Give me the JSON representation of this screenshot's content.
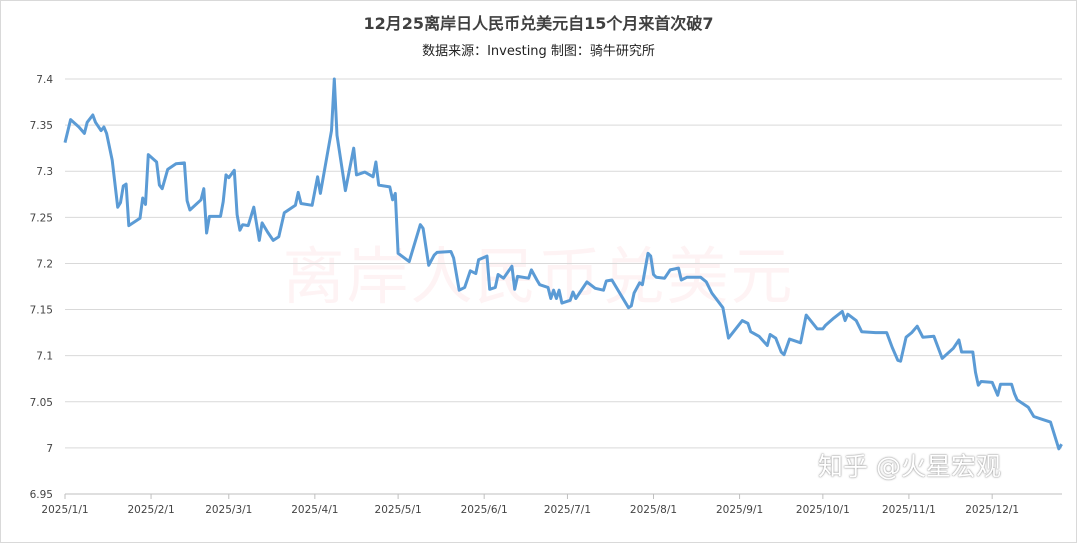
{
  "chart_data": {
    "type": "line",
    "title": "12月25离岸日人民币兑美元自15个月来首次破7",
    "subtitle": "数据来源：Investing   制图：骑牛研究所",
    "xlabel": "",
    "ylabel": "",
    "ylim": [
      6.95,
      7.4
    ],
    "yticks": [
      "6.95",
      "7",
      "7.05",
      "7.1",
      "7.15",
      "7.2",
      "7.25",
      "7.3",
      "7.35",
      "7.4"
    ],
    "xticks": [
      "2025/1/1",
      "2025/2/1",
      "2025/3/1",
      "2025/4/1",
      "2025/5/1",
      "2025/6/1",
      "2025/7/1",
      "2025/8/1",
      "2025/9/1",
      "2025/10/1",
      "2025/11/1",
      "2025/12/1"
    ],
    "grid": true,
    "line_color": "#5b9bd5",
    "points": [
      [
        "2025-01-01",
        7.331
      ],
      [
        "2025-01-03",
        7.356
      ],
      [
        "2025-01-06",
        7.348
      ],
      [
        "2025-01-08",
        7.341
      ],
      [
        "2025-01-09",
        7.353
      ],
      [
        "2025-01-11",
        7.361
      ],
      [
        "2025-01-12",
        7.353
      ],
      [
        "2025-01-14",
        7.344
      ],
      [
        "2025-01-15",
        7.348
      ],
      [
        "2025-01-16",
        7.341
      ],
      [
        "2025-01-18",
        7.312
      ],
      [
        "2025-01-20",
        7.261
      ],
      [
        "2025-01-21",
        7.266
      ],
      [
        "2025-01-22",
        7.284
      ],
      [
        "2025-01-23",
        7.286
      ],
      [
        "2025-01-24",
        7.241
      ],
      [
        "2025-01-28",
        7.249
      ],
      [
        "2025-01-29",
        7.271
      ],
      [
        "2025-01-30",
        7.264
      ],
      [
        "2025-01-31",
        7.318
      ],
      [
        "2025-02-03",
        7.31
      ],
      [
        "2025-02-04",
        7.285
      ],
      [
        "2025-02-05",
        7.281
      ],
      [
        "2025-02-07",
        7.302
      ],
      [
        "2025-02-10",
        7.308
      ],
      [
        "2025-02-13",
        7.309
      ],
      [
        "2025-02-14",
        7.268
      ],
      [
        "2025-02-15",
        7.258
      ],
      [
        "2025-02-19",
        7.269
      ],
      [
        "2025-02-20",
        7.281
      ],
      [
        "2025-02-21",
        7.233
      ],
      [
        "2025-02-22",
        7.251
      ],
      [
        "2025-02-26",
        7.251
      ],
      [
        "2025-02-27",
        7.267
      ],
      [
        "2025-02-28",
        7.296
      ],
      [
        "2025-03-01",
        7.293
      ],
      [
        "2025-03-03",
        7.301
      ],
      [
        "2025-03-04",
        7.253
      ],
      [
        "2025-03-05",
        7.236
      ],
      [
        "2025-03-06",
        7.242
      ],
      [
        "2025-03-08",
        7.241
      ],
      [
        "2025-03-10",
        7.261
      ],
      [
        "2025-03-12",
        7.225
      ],
      [
        "2025-03-13",
        7.244
      ],
      [
        "2025-03-15",
        7.234
      ],
      [
        "2025-03-17",
        7.225
      ],
      [
        "2025-03-19",
        7.229
      ],
      [
        "2025-03-21",
        7.255
      ],
      [
        "2025-03-25",
        7.263
      ],
      [
        "2025-03-26",
        7.277
      ],
      [
        "2025-03-27",
        7.265
      ],
      [
        "2025-03-31",
        7.263
      ],
      [
        "2025-04-02",
        7.294
      ],
      [
        "2025-04-03",
        7.276
      ],
      [
        "2025-04-07",
        7.344
      ],
      [
        "2025-04-08",
        7.4
      ],
      [
        "2025-04-09",
        7.339
      ],
      [
        "2025-04-12",
        7.279
      ],
      [
        "2025-04-15",
        7.325
      ],
      [
        "2025-04-16",
        7.296
      ],
      [
        "2025-04-19",
        7.299
      ],
      [
        "2025-04-22",
        7.294
      ],
      [
        "2025-04-23",
        7.31
      ],
      [
        "2025-04-24",
        7.285
      ],
      [
        "2025-04-28",
        7.283
      ],
      [
        "2025-04-29",
        7.269
      ],
      [
        "2025-04-30",
        7.276
      ],
      [
        "2025-05-01",
        7.211
      ],
      [
        "2025-05-05",
        7.202
      ],
      [
        "2025-05-09",
        7.242
      ],
      [
        "2025-05-10",
        7.238
      ],
      [
        "2025-05-12",
        7.198
      ],
      [
        "2025-05-14",
        7.209
      ],
      [
        "2025-05-15",
        7.212
      ],
      [
        "2025-05-20",
        7.213
      ],
      [
        "2025-05-21",
        7.206
      ],
      [
        "2025-05-23",
        7.171
      ],
      [
        "2025-05-25",
        7.174
      ],
      [
        "2025-05-27",
        7.192
      ],
      [
        "2025-05-29",
        7.189
      ],
      [
        "2025-05-30",
        7.204
      ],
      [
        "2025-06-02",
        7.208
      ],
      [
        "2025-06-03",
        7.172
      ],
      [
        "2025-06-05",
        7.174
      ],
      [
        "2025-06-06",
        7.188
      ],
      [
        "2025-06-08",
        7.184
      ],
      [
        "2025-06-11",
        7.197
      ],
      [
        "2025-06-12",
        7.172
      ],
      [
        "2025-06-13",
        7.186
      ],
      [
        "2025-06-17",
        7.184
      ],
      [
        "2025-06-18",
        7.193
      ],
      [
        "2025-06-20",
        7.182
      ],
      [
        "2025-06-21",
        7.177
      ],
      [
        "2025-06-24",
        7.174
      ],
      [
        "2025-06-25",
        7.162
      ],
      [
        "2025-06-26",
        7.171
      ],
      [
        "2025-06-27",
        7.162
      ],
      [
        "2025-06-28",
        7.171
      ],
      [
        "2025-06-29",
        7.157
      ],
      [
        "2025-07-02",
        7.16
      ],
      [
        "2025-07-03",
        7.169
      ],
      [
        "2025-07-04",
        7.162
      ],
      [
        "2025-07-08",
        7.18
      ],
      [
        "2025-07-11",
        7.173
      ],
      [
        "2025-07-14",
        7.171
      ],
      [
        "2025-07-15",
        7.181
      ],
      [
        "2025-07-17",
        7.182
      ],
      [
        "2025-07-20",
        7.167
      ],
      [
        "2025-07-23",
        7.152
      ],
      [
        "2025-07-24",
        7.154
      ],
      [
        "2025-07-25",
        7.168
      ],
      [
        "2025-07-27",
        7.179
      ],
      [
        "2025-07-28",
        7.177
      ],
      [
        "2025-07-30",
        7.211
      ],
      [
        "2025-07-31",
        7.208
      ],
      [
        "2025-08-01",
        7.188
      ],
      [
        "2025-08-02",
        7.185
      ],
      [
        "2025-08-05",
        7.184
      ],
      [
        "2025-08-07",
        7.193
      ],
      [
        "2025-08-10",
        7.195
      ],
      [
        "2025-08-11",
        7.182
      ],
      [
        "2025-08-13",
        7.185
      ],
      [
        "2025-08-18",
        7.185
      ],
      [
        "2025-08-20",
        7.18
      ],
      [
        "2025-08-22",
        7.168
      ],
      [
        "2025-08-26",
        7.152
      ],
      [
        "2025-08-28",
        7.119
      ],
      [
        "2025-09-02",
        7.138
      ],
      [
        "2025-09-04",
        7.135
      ],
      [
        "2025-09-05",
        7.126
      ],
      [
        "2025-09-08",
        7.121
      ],
      [
        "2025-09-11",
        7.111
      ],
      [
        "2025-09-12",
        7.123
      ],
      [
        "2025-09-14",
        7.119
      ],
      [
        "2025-09-16",
        7.104
      ],
      [
        "2025-09-17",
        7.101
      ],
      [
        "2025-09-19",
        7.118
      ],
      [
        "2025-09-23",
        7.114
      ],
      [
        "2025-09-25",
        7.144
      ],
      [
        "2025-09-29",
        7.129
      ],
      [
        "2025-10-01",
        7.129
      ],
      [
        "2025-10-02",
        7.133
      ],
      [
        "2025-10-05",
        7.141
      ],
      [
        "2025-10-08",
        7.148
      ],
      [
        "2025-10-09",
        7.138
      ],
      [
        "2025-10-10",
        7.145
      ],
      [
        "2025-10-13",
        7.138
      ],
      [
        "2025-10-15",
        7.126
      ],
      [
        "2025-10-20",
        7.125
      ],
      [
        "2025-10-24",
        7.125
      ],
      [
        "2025-10-26",
        7.109
      ],
      [
        "2025-10-28",
        7.095
      ],
      [
        "2025-10-29",
        7.094
      ],
      [
        "2025-10-31",
        7.12
      ],
      [
        "2025-11-02",
        7.125
      ],
      [
        "2025-11-04",
        7.132
      ],
      [
        "2025-11-06",
        7.12
      ],
      [
        "2025-11-10",
        7.121
      ],
      [
        "2025-11-13",
        7.097
      ],
      [
        "2025-11-17",
        7.108
      ],
      [
        "2025-11-19",
        7.117
      ],
      [
        "2025-11-20",
        7.104
      ],
      [
        "2025-11-24",
        7.104
      ],
      [
        "2025-11-25",
        7.082
      ],
      [
        "2025-11-26",
        7.068
      ],
      [
        "2025-11-27",
        7.072
      ],
      [
        "2025-12-01",
        7.071
      ],
      [
        "2025-12-03",
        7.057
      ],
      [
        "2025-12-04",
        7.069
      ],
      [
        "2025-12-08",
        7.069
      ],
      [
        "2025-12-09",
        7.059
      ],
      [
        "2025-12-10",
        7.052
      ],
      [
        "2025-12-14",
        7.044
      ],
      [
        "2025-12-16",
        7.034
      ],
      [
        "2025-12-18",
        7.032
      ],
      [
        "2025-12-22",
        7.028
      ],
      [
        "2025-12-25",
        6.999
      ],
      [
        "2025-12-26",
        7.004
      ]
    ]
  },
  "watermark": "离岸人民币兑美元",
  "platform_watermark": "知乎 @火星宏观"
}
